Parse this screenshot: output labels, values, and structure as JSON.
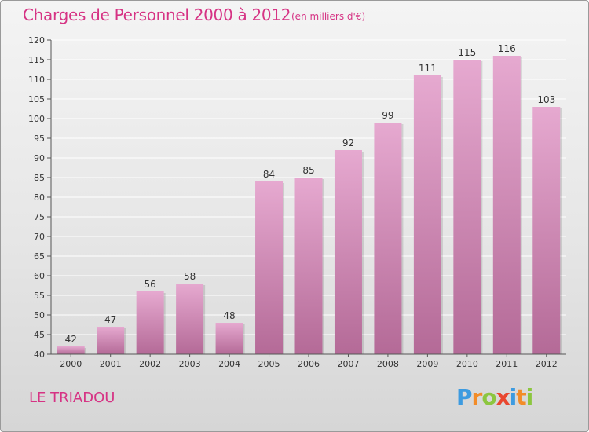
{
  "header": {
    "title": "Charges de Personnel 2000 à 2012",
    "subtitle": "(en milliers d'€)"
  },
  "footer": {
    "commune": "LE TRIADOU",
    "logo": [
      "P",
      "r",
      "o",
      "x",
      "i",
      "t",
      "i"
    ],
    "logo_colors": [
      "#3d9be0",
      "#f28c28",
      "#8cc63f",
      "#e9472f",
      "#3d9be0",
      "#f28c28",
      "#8cc63f"
    ]
  },
  "colors": {
    "bar_top": "#e6a9d0",
    "bar_bottom": "#b46a97",
    "grid": "#ffffff",
    "title": "#d63384"
  },
  "chart_data": {
    "type": "bar",
    "categories": [
      "2000",
      "2001",
      "2002",
      "2003",
      "2004",
      "2005",
      "2006",
      "2007",
      "2008",
      "2009",
      "2010",
      "2011",
      "2012"
    ],
    "values": [
      42,
      47,
      56,
      58,
      48,
      84,
      85,
      92,
      99,
      111,
      115,
      116,
      103
    ],
    "value_labels": [
      "42",
      "47",
      "56",
      "58",
      "48",
      "84",
      "85",
      "92",
      "99",
      "111",
      "115",
      "116",
      "103"
    ],
    "title": "Charges de Personnel 2000 à 2012",
    "xlabel": "",
    "ylabel": "",
    "ylim": [
      40,
      120
    ],
    "yticks": [
      "40",
      "45",
      "50",
      "55",
      "60",
      "65",
      "70",
      "75",
      "80",
      "85",
      "90",
      "95",
      "100",
      "105",
      "110",
      "115",
      "120"
    ],
    "grid": true
  }
}
